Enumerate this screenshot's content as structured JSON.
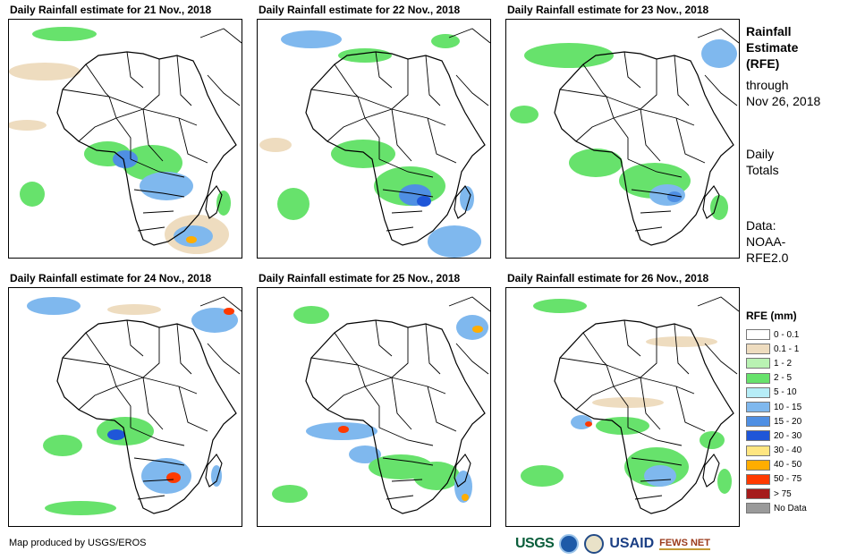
{
  "panels": [
    {
      "title": "Daily Rainfall estimate for 21 Nov., 2018",
      "day": 21
    },
    {
      "title": "Daily Rainfall estimate for 22 Nov., 2018",
      "day": 22
    },
    {
      "title": "Daily Rainfall estimate for 23 Nov., 2018",
      "day": 23
    },
    {
      "title": "Daily Rainfall estimate for 24 Nov., 2018",
      "day": 24
    },
    {
      "title": "Daily Rainfall estimate for 25 Nov., 2018",
      "day": 25
    },
    {
      "title": "Daily Rainfall estimate for 26 Nov., 2018",
      "day": 26
    }
  ],
  "side": {
    "title_lines": [
      "Rainfall",
      "Estimate",
      "(RFE)"
    ],
    "through_lines": [
      "through",
      "Nov 26, 2018"
    ],
    "totals_lines": [
      "Daily",
      "Totals"
    ],
    "source_lines": [
      "Data:",
      "NOAA-",
      "RFE2.0"
    ]
  },
  "legend": {
    "title": "RFE (mm)",
    "items": [
      {
        "label": "0 - 0.1",
        "color": "#ffffff"
      },
      {
        "label": "0.1 - 1",
        "color": "#eedcbf"
      },
      {
        "label": "1 - 2",
        "color": "#b9f2b3"
      },
      {
        "label": "2 - 5",
        "color": "#67e26c"
      },
      {
        "label": "5 - 10",
        "color": "#b6edf7"
      },
      {
        "label": "10 - 15",
        "color": "#7fb8ee"
      },
      {
        "label": "15 - 20",
        "color": "#4f8fe3"
      },
      {
        "label": "20 - 30",
        "color": "#1f56d8"
      },
      {
        "label": "30 - 40",
        "color": "#ffe681"
      },
      {
        "label": "40 - 50",
        "color": "#ffad00"
      },
      {
        "label": "50 - 75",
        "color": "#ff3a00"
      },
      {
        "label": "> 75",
        "color": "#a51c1c"
      },
      {
        "label": "No Data",
        "color": "#9a9a9a"
      }
    ]
  },
  "credit": "Map produced by USGS/EROS",
  "logos": {
    "usgs": "USGS",
    "usaid": "USAID",
    "fews": "FEWS NET"
  }
}
